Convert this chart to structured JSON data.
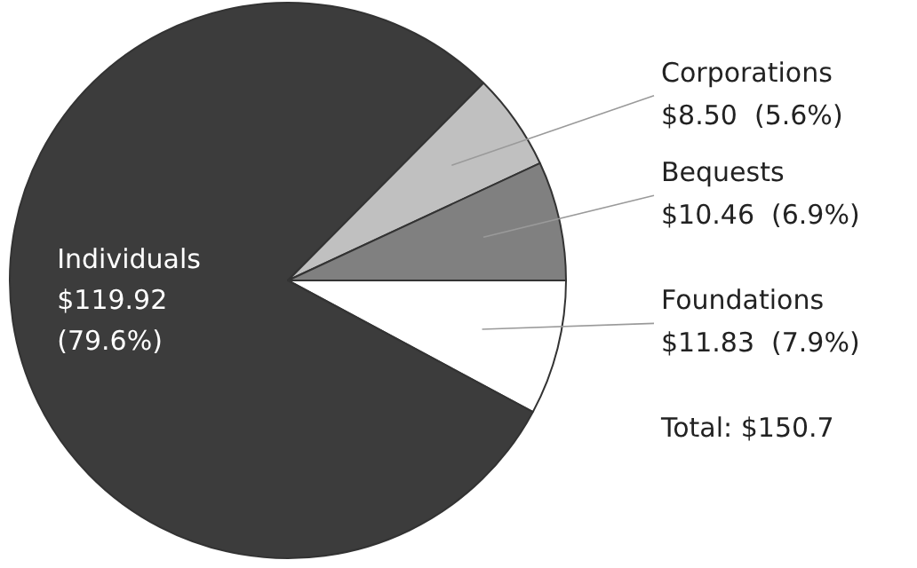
{
  "chart_data": {
    "type": "pie",
    "categories": [
      "Foundations",
      "Individuals",
      "Corporations",
      "Bequests"
    ],
    "values": [
      11.83,
      119.92,
      8.5,
      10.46
    ],
    "value_labels": [
      "$11.83  (7.9%)",
      "$119.92 (79.6%)",
      "$8.50  (5.6%)",
      "$10.46  (6.9%)"
    ],
    "colors": [
      "#ffffff",
      "#3c3c3c",
      "#c0c0c0",
      "#808080"
    ],
    "annotations": [
      "Total: $150.7"
    ],
    "legend": false
  }
}
